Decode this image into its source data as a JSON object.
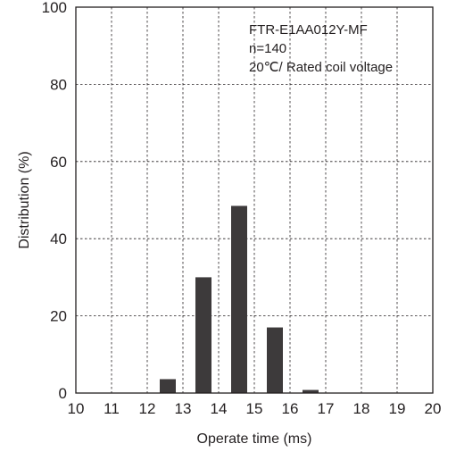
{
  "chart_data": {
    "type": "bar",
    "xlabel": "Operate time (ms)",
    "ylabel": "Distribution (%)",
    "xlim": [
      10,
      20
    ],
    "ylim": [
      0,
      100
    ],
    "x_ticks": [
      "10",
      "11",
      "12",
      "13",
      "14",
      "15",
      "16",
      "17",
      "18",
      "19",
      "20"
    ],
    "y_ticks": [
      "0",
      "20",
      "40",
      "60",
      "80",
      "100"
    ],
    "bins": [
      {
        "from": 12,
        "to": 13,
        "value": 3.6
      },
      {
        "from": 13,
        "to": 14,
        "value": 30
      },
      {
        "from": 14,
        "to": 15,
        "value": 48.5
      },
      {
        "from": 15,
        "to": 16,
        "value": 17
      },
      {
        "from": 16,
        "to": 17,
        "value": 0.8
      }
    ],
    "grid": true,
    "annotations": [
      "FTR-E1AA012Y-MF",
      "n=140",
      "20℃/ Rated coil voltage"
    ]
  }
}
